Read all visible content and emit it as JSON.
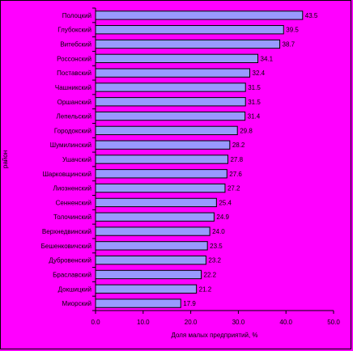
{
  "chart_data": {
    "type": "bar",
    "orientation": "horizontal",
    "categories": [
      "Полоцкий",
      "Глубокский",
      "Витебский",
      "Россонский",
      "Поставский",
      "Чашникский",
      "Оршанский",
      "Лепельский",
      "Городокский",
      "Шумилинский",
      "Ушачский",
      "Шарковщинский",
      "Лиозненский",
      "Сенненский",
      "Толочинский",
      "Верхнедвинский",
      "Бешенковичский",
      "Дубровенский",
      "Браславский",
      "Докшицкий",
      "Миорский"
    ],
    "values": [
      43.5,
      39.5,
      38.7,
      34.1,
      32.4,
      31.5,
      31.5,
      31.4,
      29.8,
      28.2,
      27.8,
      27.6,
      27.2,
      25.4,
      24.9,
      24.0,
      23.5,
      23.2,
      22.2,
      21.2,
      17.9
    ],
    "value_labels": [
      "43.5",
      "39.5",
      "38.7",
      "34.1",
      "32.4",
      "31.5",
      "31.5",
      "31.4",
      "29.8",
      "28.2",
      "27.8",
      "27.6",
      "27.2",
      "25.4",
      "24.9",
      "24.0",
      "23.5",
      "23.2",
      "22.2",
      "21.2",
      "17.9"
    ],
    "xlabel": "Доля малых предприятий, %",
    "ylabel": "район",
    "xlim": [
      0,
      50
    ],
    "xticks": [
      "0.0",
      "10.0",
      "20.0",
      "30.0",
      "40.0",
      "50.0"
    ],
    "grid": false,
    "legend": "none",
    "bar_color": "#9999ff",
    "background_color": "#ff00ff"
  }
}
